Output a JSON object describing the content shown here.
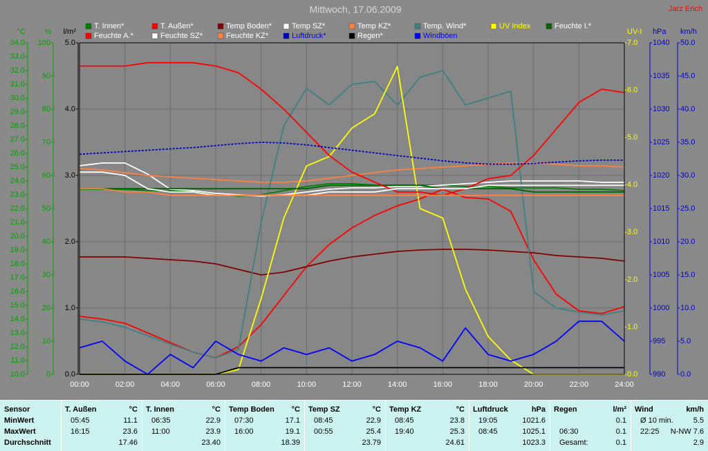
{
  "chart_data": {
    "type": "line",
    "title": "Mittwoch, 17.06.2009",
    "author": "Jarz Erich",
    "xlim": [
      0,
      24
    ],
    "xticks": [
      {
        "value": 0,
        "label": "00:00"
      },
      {
        "value": 2,
        "label": "02:00"
      },
      {
        "value": 4,
        "label": "04:00"
      },
      {
        "value": 6,
        "label": "06:00"
      },
      {
        "value": 8,
        "label": "08:00"
      },
      {
        "value": 10,
        "label": "10:00"
      },
      {
        "value": 12,
        "label": "12:00"
      },
      {
        "value": 14,
        "label": "14:00"
      },
      {
        "value": 16,
        "label": "16:00"
      },
      {
        "value": 18,
        "label": "18:00"
      },
      {
        "value": 20,
        "label": "20:00"
      },
      {
        "value": 22,
        "label": "22:00"
      },
      {
        "value": 24,
        "label": "24:00"
      }
    ],
    "grid": true,
    "x": [
      0,
      1,
      2,
      3,
      4,
      5,
      6,
      7,
      8,
      9,
      10,
      11,
      12,
      13,
      14,
      15,
      16,
      17,
      18,
      19,
      20,
      21,
      22,
      23,
      24
    ],
    "y_axes": [
      {
        "label": "°C",
        "color": "#00a000",
        "lim": [
          10,
          34
        ],
        "ticks": [
          {
            "value": 10,
            "label": "10.0"
          },
          {
            "value": 11,
            "label": "11.0"
          },
          {
            "value": 12,
            "label": "12.0"
          },
          {
            "value": 13,
            "label": "13.0"
          },
          {
            "value": 14,
            "label": "14.0"
          },
          {
            "value": 15,
            "label": "15.0"
          },
          {
            "value": 16,
            "label": "16.0"
          },
          {
            "value": 17,
            "label": "17.0"
          },
          {
            "value": 18,
            "label": "18.0"
          },
          {
            "value": 19,
            "label": "19.0"
          },
          {
            "value": 20,
            "label": "20.0"
          },
          {
            "value": 21,
            "label": "21.0"
          },
          {
            "value": 22,
            "label": "22.0"
          },
          {
            "value": 23,
            "label": "23.0"
          },
          {
            "value": 24,
            "label": "24.0"
          },
          {
            "value": 25,
            "label": "25.0"
          },
          {
            "value": 26,
            "label": "26.0"
          },
          {
            "value": 27,
            "label": "27.0"
          },
          {
            "value": 28,
            "label": "28.0"
          },
          {
            "value": 29,
            "label": "29.0"
          },
          {
            "value": 30,
            "label": "30.0"
          },
          {
            "value": 31,
            "label": "31.0"
          },
          {
            "value": 32,
            "label": "32.0"
          },
          {
            "value": 33,
            "label": "33.0"
          },
          {
            "value": 34,
            "label": "34.0"
          }
        ]
      },
      {
        "label": "%",
        "color": "#00a000",
        "lim": [
          0,
          100
        ],
        "ticks": [
          0,
          10,
          20,
          30,
          40,
          50,
          60,
          70,
          80,
          90,
          100
        ]
      },
      {
        "label": "l/m²",
        "color": "#000000",
        "lim": [
          0,
          5
        ],
        "grid": true,
        "ticks": [
          {
            "value": 0,
            "label": "0.0"
          },
          {
            "value": 1,
            "label": "1.0"
          },
          {
            "value": 2,
            "label": "2.0"
          },
          {
            "value": 3,
            "label": "3.0"
          },
          {
            "value": 4,
            "label": "4.0"
          },
          {
            "value": 5,
            "label": "5.0"
          }
        ]
      },
      {
        "label": "UV-I",
        "color": "#ffff00",
        "lim": [
          0,
          7
        ],
        "ticks": [
          {
            "value": 0,
            "label": "0.0"
          },
          {
            "value": 1,
            "label": "1.0"
          },
          {
            "value": 2,
            "label": "2.0"
          },
          {
            "value": 3,
            "label": "3.0"
          },
          {
            "value": 4,
            "label": "4.0"
          },
          {
            "value": 5,
            "label": "5.0"
          },
          {
            "value": 6,
            "label": "6.0"
          },
          {
            "value": 7,
            "label": "7.0"
          }
        ]
      },
      {
        "label": "hPa",
        "color": "#0000c0",
        "lim": [
          990,
          1040
        ],
        "ticks": [
          990,
          995,
          1000,
          1005,
          1010,
          1015,
          1020,
          1025,
          1030,
          1035,
          1040
        ]
      },
      {
        "label": "km/h",
        "color": "#0000c0",
        "lim": [
          0,
          50
        ],
        "ticks": [
          {
            "value": 0,
            "label": "0.0"
          },
          {
            "value": 5,
            "label": "5.0"
          },
          {
            "value": 10,
            "label": "10.0"
          },
          {
            "value": 15,
            "label": "15.0"
          },
          {
            "value": 20,
            "label": "20.0"
          },
          {
            "value": 25,
            "label": "25.0"
          },
          {
            "value": 30,
            "label": "30.0"
          },
          {
            "value": 35,
            "label": "35.0"
          },
          {
            "value": 40,
            "label": "40.0"
          },
          {
            "value": 45,
            "label": "45.0"
          },
          {
            "value": 50,
            "label": "50.0"
          }
        ]
      }
    ],
    "series": [
      {
        "name": "T. Innen*",
        "color": "#008000",
        "label_color": "#ffffff",
        "axis": 0,
        "values": [
          23.4,
          23.4,
          23.4,
          23.3,
          23.3,
          23.2,
          23.1,
          22.9,
          23.0,
          23.3,
          23.6,
          23.8,
          23.8,
          23.7,
          23.7,
          23.7,
          23.7,
          23.6,
          23.6,
          23.5,
          23.5,
          23.5,
          23.4,
          23.4,
          23.3
        ]
      },
      {
        "name": "T. Außen*",
        "color": "#ff0000",
        "label_color": "#ffffff",
        "axis": 0,
        "values": [
          14.2,
          14.0,
          13.7,
          13.0,
          12.3,
          11.6,
          11.2,
          12.0,
          13.6,
          15.7,
          17.8,
          19.4,
          20.6,
          21.5,
          22.2,
          22.7,
          23.4,
          22.8,
          22.7,
          21.8,
          18.3,
          15.8,
          14.6,
          14.4,
          14.9
        ]
      },
      {
        "name": "Temp Boden*",
        "color": "#800000",
        "label_color": "#ffffff",
        "axis": 0,
        "values": [
          18.5,
          18.5,
          18.5,
          18.4,
          18.3,
          18.2,
          18.0,
          17.6,
          17.2,
          17.4,
          17.8,
          18.2,
          18.5,
          18.7,
          18.9,
          19.0,
          19.05,
          19.05,
          19.0,
          18.9,
          18.8,
          18.6,
          18.5,
          18.4,
          18.2
        ]
      },
      {
        "name": "Temp SZ*",
        "color": "#ffffff",
        "label_color": "#ffffff",
        "axis": 0,
        "values": [
          25.1,
          25.3,
          25.3,
          24.5,
          23.4,
          23.3,
          23.1,
          23.0,
          22.9,
          23.0,
          23.2,
          23.4,
          23.5,
          23.5,
          23.6,
          23.6,
          23.7,
          23.8,
          23.9,
          24.0,
          24.0,
          24.0,
          24.0,
          23.9,
          23.9
        ]
      },
      {
        "name": "Temp KZ*",
        "color": "#ff8040",
        "label_color": "#ffffff",
        "axis": 0,
        "values": [
          24.9,
          24.8,
          24.6,
          24.4,
          24.3,
          24.2,
          24.1,
          24.0,
          23.9,
          23.9,
          24.0,
          24.2,
          24.4,
          24.6,
          24.8,
          24.9,
          25.0,
          25.1,
          25.2,
          25.3,
          25.3,
          25.2,
          25.1,
          25.1,
          25.0
        ]
      },
      {
        "name": "Temp. Wind*",
        "color": "#408080",
        "label_color": "#ffffff",
        "axis": 0,
        "values": [
          14.0,
          13.8,
          13.4,
          12.8,
          12.2,
          11.6,
          11.2,
          11.8,
          21.0,
          28.0,
          30.7,
          29.5,
          31.0,
          31.2,
          29.5,
          31.5,
          32.0,
          29.5,
          30.0,
          30.5,
          16.0,
          14.8,
          14.5,
          14.3,
          14.6
        ]
      },
      {
        "name": "UV Index",
        "color": "#ffff00",
        "label_color": "#ffff00",
        "axis": 3,
        "values": [
          0,
          0,
          0,
          0,
          0,
          0,
          0,
          0.1,
          1.6,
          3.3,
          4.4,
          4.6,
          5.2,
          5.5,
          6.5,
          3.5,
          3.3,
          1.8,
          0.8,
          0.3,
          0,
          0,
          0,
          0,
          0
        ]
      },
      {
        "name": "Feuchte I.*",
        "color": "#006400",
        "label_color": "#ffffff",
        "axis": 1,
        "values": [
          56,
          56,
          56,
          56,
          56,
          56,
          56,
          56,
          56,
          56,
          56,
          57,
          57,
          57,
          57,
          57,
          56,
          56,
          56,
          56,
          55,
          55,
          55,
          55,
          55
        ]
      },
      {
        "name": "Feuchte A.*",
        "color": "#ff0000",
        "label_color": "#ffffff",
        "axis": 1,
        "values": [
          93,
          93,
          93,
          94,
          94,
          94,
          93,
          91,
          86,
          80,
          73,
          66,
          61,
          58,
          55,
          55,
          54,
          56,
          59,
          60,
          66,
          74,
          82,
          86,
          85
        ]
      },
      {
        "name": "Feuchte SZ*",
        "color": "#ffffff",
        "label_color": "#ffffff",
        "axis": 1,
        "values": [
          61,
          61,
          60,
          56,
          55,
          55,
          54,
          54,
          54,
          54,
          54,
          55,
          55,
          55,
          56,
          56,
          56,
          56,
          57,
          57,
          57,
          57,
          57,
          57,
          57
        ]
      },
      {
        "name": "Feuchte KZ*",
        "color": "#ff8040",
        "label_color": "#ffffff",
        "axis": 1,
        "values": [
          56,
          56,
          55,
          55,
          54,
          54,
          54,
          54,
          54,
          54,
          54,
          54,
          54,
          54,
          54,
          54,
          54,
          54,
          54,
          54,
          54,
          54,
          54,
          54,
          54
        ]
      },
      {
        "name": "Luftdruck*",
        "color": "#0000c0",
        "label_color": "#0000ff",
        "axis": 4,
        "style": "dotted",
        "values": [
          1023.2,
          1023.4,
          1023.6,
          1023.8,
          1024.0,
          1024.2,
          1024.5,
          1024.8,
          1025.0,
          1024.9,
          1024.6,
          1024.2,
          1023.8,
          1023.4,
          1023.0,
          1022.6,
          1022.2,
          1021.9,
          1021.7,
          1021.7,
          1021.8,
          1022.0,
          1022.2,
          1022.3,
          1022.3
        ]
      },
      {
        "name": "Regen*",
        "color": "#000000",
        "label_color": "#ffffff",
        "axis": 2,
        "values": [
          0,
          0,
          0,
          0,
          0,
          0,
          0,
          0.1,
          0.1,
          0.1,
          0.1,
          0.1,
          0.1,
          0.1,
          0.1,
          0.1,
          0.1,
          0.1,
          0.1,
          0.1,
          0.1,
          0.1,
          0.1,
          0.1,
          0.1
        ]
      },
      {
        "name": "Windböen",
        "color": "#0000ff",
        "label_color": "#0000ff",
        "axis": 5,
        "values": [
          4,
          5,
          2,
          0,
          3,
          1,
          5,
          3,
          2,
          4,
          3,
          4,
          2,
          3,
          5,
          4,
          2,
          7,
          3,
          2,
          3,
          5,
          8,
          8,
          5
        ]
      }
    ]
  },
  "table": {
    "header": [
      {
        "name": "Sensor"
      },
      {
        "name": "T. Außen",
        "unit": "°C"
      },
      {
        "name": "T. Innen",
        "unit": "°C"
      },
      {
        "name": "Temp Boden",
        "unit": "°C"
      },
      {
        "name": "Temp SZ",
        "unit": "°C"
      },
      {
        "name": "Temp KZ",
        "unit": "°C"
      },
      {
        "name": "Luftdruck",
        "unit": "hPa"
      },
      {
        "name": "Regen",
        "unit": "l/m²"
      },
      {
        "name": "Wind",
        "unit": "km/h"
      }
    ],
    "rows": [
      {
        "label": "MinWert",
        "cells": [
          {
            "time": "05:45",
            "value": "11.1"
          },
          {
            "time": "06:35",
            "value": "22.9"
          },
          {
            "time": "07:30",
            "value": "17.1"
          },
          {
            "time": "08:45",
            "value": "22.9"
          },
          {
            "time": "08:45",
            "value": "23.8"
          },
          {
            "time": "19:05",
            "value": "1021.6"
          },
          {
            "value": "0.1"
          },
          {
            "time": "Ø 10 min.",
            "value": "5.5"
          }
        ]
      },
      {
        "label": "MaxWert",
        "cells": [
          {
            "time": "16:15",
            "value": "23.6"
          },
          {
            "time": "11:00",
            "value": "23.9"
          },
          {
            "time": "16:00",
            "value": "19.1"
          },
          {
            "time": "00:55",
            "value": "25.4"
          },
          {
            "time": "19:40",
            "value": "25.3"
          },
          {
            "time": "08:45",
            "value": "1025.1"
          },
          {
            "time": "06:30",
            "value": "0.1"
          },
          {
            "time": "22:25",
            "value": "N-NW 7.6"
          }
        ]
      },
      {
        "label": "Durchschnitt",
        "cells": [
          {
            "value": "17.46"
          },
          {
            "value": "23.40"
          },
          {
            "value": "18.39"
          },
          {
            "value": "23.79"
          },
          {
            "value": "24.61"
          },
          {
            "value": "1023.3"
          },
          {
            "time": "Gesamt:",
            "value": "0.1"
          },
          {
            "value": "2.9"
          }
        ]
      }
    ]
  }
}
